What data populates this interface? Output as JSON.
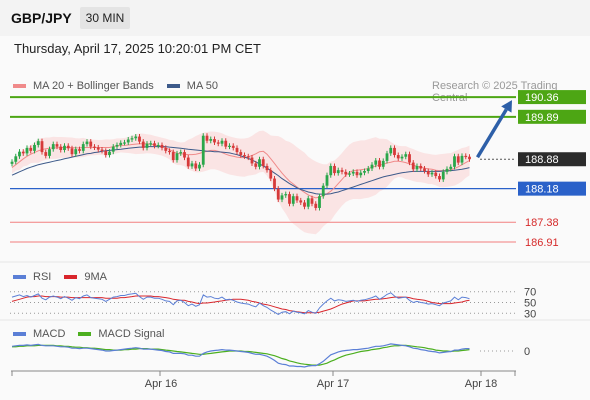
{
  "header": {
    "symbol": "GBP/JPY",
    "timeframe": "30 MIN"
  },
  "datetime": "Thursday, April 17, 2025 10:20:01 PM CET",
  "credit": "Research © 2025 Trading Central",
  "legend_main": [
    {
      "label": "MA 20 + Bollinger Bands",
      "color": "#f08a8a"
    },
    {
      "label": "MA 50",
      "color": "#3d5a8a"
    }
  ],
  "legend_rsi": [
    {
      "label": "RSI",
      "color": "#5b7fd6"
    },
    {
      "label": "9MA",
      "color": "#d9262c"
    }
  ],
  "legend_macd": [
    {
      "label": "MACD",
      "color": "#5b7fd6"
    },
    {
      "label": "MACD Signal",
      "color": "#4caf1f"
    }
  ],
  "colors": {
    "green_level": "#4da614",
    "blue_level": "#2a61c9",
    "red_level": "#f27f7f",
    "up_candle": "#2aa64a",
    "down_candle": "#d63a3a",
    "arrow": "#2d5fa8",
    "current_tag": "#2b2b2b"
  },
  "chart_data": [
    {
      "type": "candlestick",
      "title": "",
      "ylim": [
        186.6,
        190.6
      ],
      "x_labels": [
        "Apr 16",
        "Apr 17",
        "Apr 18"
      ],
      "levels": [
        {
          "label": "190.36",
          "value": 190.36,
          "kind": "resistance"
        },
        {
          "label": "189.89",
          "value": 189.89,
          "kind": "resistance"
        },
        {
          "label": "188.88",
          "value": 188.88,
          "kind": "current"
        },
        {
          "label": "188.18",
          "value": 188.18,
          "kind": "pivot"
        },
        {
          "label": "187.38",
          "value": 187.38,
          "kind": "support"
        },
        {
          "label": "186.91",
          "value": 186.91,
          "kind": "support"
        }
      ],
      "close": [
        188.82,
        188.95,
        189.06,
        189.02,
        189.15,
        189.08,
        189.22,
        189.31,
        189.05,
        188.96,
        189.12,
        189.24,
        189.18,
        189.1,
        189.2,
        189.14,
        189.0,
        189.12,
        189.08,
        189.24,
        189.3,
        189.18,
        189.16,
        189.11,
        189.08,
        188.98,
        189.06,
        189.18,
        189.22,
        189.27,
        189.28,
        189.35,
        189.38,
        189.42,
        189.3,
        189.15,
        189.25,
        189.26,
        189.2,
        189.22,
        189.15,
        189.08,
        189.05,
        188.86,
        189.02,
        189.05,
        188.92,
        188.71,
        188.78,
        188.66,
        188.75,
        189.44,
        189.32,
        189.36,
        189.28,
        189.25,
        189.32,
        189.18,
        189.2,
        189.15,
        189.05,
        188.98,
        188.95,
        188.92,
        188.78,
        188.7,
        188.88,
        188.72,
        188.62,
        188.42,
        188.18,
        187.92,
        188.02,
        188.05,
        187.82,
        188.0,
        187.9,
        187.85,
        187.75,
        187.95,
        187.82,
        187.72,
        188.0,
        188.25,
        188.5,
        188.72,
        188.55,
        188.62,
        188.58,
        188.52,
        188.54,
        188.58,
        188.5,
        188.56,
        188.6,
        188.66,
        188.75,
        188.85,
        188.7,
        188.84,
        189.02,
        189.15,
        188.98,
        188.9,
        188.94,
        189.0,
        188.8,
        188.64,
        188.72,
        188.66,
        188.6,
        188.52,
        188.56,
        188.48,
        188.4,
        188.58,
        188.65,
        188.7,
        188.95,
        188.8,
        188.96,
        188.94,
        188.88
      ],
      "ma20": [
        188.68,
        188.75,
        188.82,
        188.89,
        188.95,
        189.0,
        189.04,
        189.08,
        189.11,
        189.13,
        189.14,
        189.15,
        189.15,
        189.16,
        189.16,
        189.16,
        189.16,
        189.15,
        189.15,
        189.16,
        189.16,
        189.16,
        189.16,
        189.16,
        189.16,
        189.16,
        189.16,
        189.18,
        189.2,
        189.21,
        189.21,
        189.22,
        189.23,
        189.24,
        189.25,
        189.25,
        189.25,
        189.24,
        189.22,
        189.2,
        189.18,
        189.15,
        189.11,
        189.06,
        189.02,
        189.01,
        189.0,
        188.99,
        188.99,
        189.0,
        189.02,
        189.05,
        189.07,
        189.09,
        189.09,
        189.07,
        189.04,
        189.0,
        188.97,
        188.95,
        188.93,
        188.92,
        188.92,
        188.94,
        188.97,
        189.01,
        189.06,
        189.07,
        189.0,
        188.89,
        188.78,
        188.66,
        188.55,
        188.45,
        188.36,
        188.29,
        188.22,
        188.15,
        188.09,
        188.03,
        187.99,
        187.96,
        187.98,
        188.02,
        188.06,
        188.12,
        188.2,
        188.3,
        188.4,
        188.5,
        188.57,
        188.61,
        188.62,
        188.63,
        188.64,
        188.66,
        188.69,
        188.72,
        188.74,
        188.76,
        188.79,
        188.81,
        188.83,
        188.83,
        188.82,
        188.8,
        188.77,
        188.74,
        188.71,
        188.69,
        188.67,
        188.65,
        188.64,
        188.62,
        188.61,
        188.61,
        188.62,
        188.63,
        188.66,
        188.7,
        188.75,
        188.8,
        188.85
      ],
      "ma50": [
        188.5,
        188.54,
        188.58,
        188.62,
        188.66,
        188.69,
        188.72,
        188.75,
        188.77,
        188.79,
        188.81,
        188.83,
        188.85,
        188.87,
        188.89,
        188.91,
        188.93,
        188.95,
        188.97,
        188.99,
        189.01,
        189.02,
        189.04,
        189.05,
        189.07,
        189.08,
        189.09,
        189.1,
        189.11,
        189.12,
        189.13,
        189.14,
        189.15,
        189.16,
        189.17,
        189.17,
        189.18,
        189.18,
        189.18,
        189.18,
        189.18,
        189.18,
        189.17,
        189.16,
        189.15,
        189.14,
        189.13,
        189.12,
        189.11,
        189.1,
        189.09,
        189.08,
        189.07,
        189.07,
        189.06,
        189.06,
        189.05,
        189.04,
        189.03,
        189.01,
        188.99,
        188.96,
        188.93,
        188.9,
        188.86,
        188.82,
        188.77,
        188.72,
        188.67,
        188.61,
        188.55,
        188.49,
        188.42,
        188.36,
        188.3,
        188.25,
        188.2,
        188.16,
        188.13,
        188.1,
        188.08,
        188.06,
        188.05,
        188.05,
        188.05,
        188.06,
        188.08,
        188.1,
        188.13,
        188.16,
        188.19,
        188.22,
        188.25,
        188.28,
        188.31,
        188.34,
        188.37,
        188.4,
        188.43,
        188.46,
        188.48,
        188.5,
        188.52,
        188.54,
        188.56,
        188.57,
        188.58,
        188.59,
        188.59,
        188.59,
        188.59,
        188.59,
        188.59,
        188.59,
        188.59,
        188.6,
        188.6,
        188.61,
        188.62,
        188.63,
        188.64,
        188.66,
        188.68
      ]
    },
    {
      "type": "line",
      "title": "RSI",
      "ylim": [
        25,
        75
      ],
      "reference_levels": [
        70,
        50,
        30
      ],
      "series": [
        {
          "name": "RSI",
          "values": [
            60,
            62,
            64,
            61,
            63,
            60,
            63,
            66,
            58,
            55,
            60,
            62,
            60,
            57,
            61,
            58,
            54,
            59,
            57,
            62,
            64,
            59,
            58,
            57,
            56,
            52,
            56,
            60,
            61,
            63,
            63,
            65,
            66,
            67,
            61,
            56,
            60,
            60,
            58,
            58,
            56,
            53,
            52,
            46,
            53,
            54,
            50,
            44,
            47,
            43,
            46,
            64,
            60,
            61,
            58,
            57,
            60,
            55,
            56,
            54,
            51,
            49,
            48,
            47,
            44,
            42,
            49,
            44,
            41,
            36,
            32,
            28,
            32,
            33,
            29,
            34,
            32,
            31,
            29,
            35,
            32,
            30,
            40,
            47,
            53,
            58,
            53,
            55,
            54,
            52,
            53,
            54,
            52,
            54,
            55,
            57,
            59,
            62,
            56,
            60,
            65,
            68,
            62,
            58,
            59,
            60,
            54,
            50,
            52,
            50,
            49,
            47,
            48,
            46,
            44,
            49,
            51,
            53,
            60,
            55,
            60,
            59,
            57
          ]
        },
        {
          "name": "9MA",
          "values": [
            52,
            54,
            56,
            58,
            60,
            61,
            61,
            62,
            62,
            61,
            61,
            61,
            61,
            60,
            60,
            60,
            59,
            59,
            59,
            59,
            59,
            59,
            59,
            59,
            59,
            58,
            58,
            58,
            58,
            59,
            59,
            60,
            61,
            62,
            62,
            62,
            62,
            62,
            61,
            61,
            60,
            59,
            58,
            56,
            55,
            54,
            54,
            52,
            51,
            49,
            48,
            49,
            49,
            50,
            51,
            52,
            53,
            54,
            55,
            56,
            56,
            56,
            55,
            54,
            52,
            51,
            49,
            47,
            46,
            44,
            42,
            40,
            38,
            37,
            35,
            34,
            33,
            32,
            31,
            31,
            31,
            31,
            32,
            34,
            36,
            38,
            41,
            44,
            47,
            49,
            51,
            53,
            53,
            53,
            53,
            54,
            55,
            56,
            56,
            57,
            58,
            59,
            60,
            60,
            60,
            60,
            59,
            57,
            56,
            55,
            54,
            52,
            50,
            49,
            48,
            48,
            48,
            48,
            49,
            50,
            51,
            53,
            54
          ]
        }
      ]
    },
    {
      "type": "line",
      "title": "MACD",
      "reference_levels": [
        0
      ],
      "series": [
        {
          "name": "MACD",
          "values": [
            0.1,
            0.11,
            0.12,
            0.12,
            0.13,
            0.12,
            0.13,
            0.14,
            0.12,
            0.11,
            0.11,
            0.11,
            0.1,
            0.09,
            0.09,
            0.08,
            0.06,
            0.06,
            0.05,
            0.06,
            0.06,
            0.05,
            0.04,
            0.03,
            0.02,
            0.0,
            0.0,
            0.01,
            0.02,
            0.03,
            0.04,
            0.05,
            0.06,
            0.07,
            0.06,
            0.04,
            0.04,
            0.04,
            0.03,
            0.02,
            0.01,
            -0.01,
            -0.02,
            -0.05,
            -0.05,
            -0.05,
            -0.06,
            -0.09,
            -0.09,
            -0.11,
            -0.11,
            -0.05,
            -0.02,
            0.0,
            0.01,
            0.02,
            0.03,
            0.02,
            0.02,
            0.01,
            0.0,
            -0.01,
            -0.02,
            -0.03,
            -0.05,
            -0.07,
            -0.07,
            -0.09,
            -0.11,
            -0.15,
            -0.2,
            -0.26,
            -0.28,
            -0.29,
            -0.32,
            -0.32,
            -0.33,
            -0.33,
            -0.34,
            -0.32,
            -0.31,
            -0.31,
            -0.27,
            -0.22,
            -0.15,
            -0.08,
            -0.05,
            -0.02,
            0.0,
            0.01,
            0.02,
            0.03,
            0.03,
            0.04,
            0.05,
            0.06,
            0.08,
            0.1,
            0.1,
            0.11,
            0.13,
            0.15,
            0.14,
            0.13,
            0.12,
            0.11,
            0.09,
            0.06,
            0.05,
            0.03,
            0.02,
            0.0,
            -0.01,
            -0.02,
            -0.04,
            -0.03,
            -0.02,
            -0.01,
            0.02,
            0.02,
            0.04,
            0.05,
            0.05
          ]
        },
        {
          "name": "MACD Signal",
          "values": [
            0.09,
            0.09,
            0.1,
            0.1,
            0.11,
            0.11,
            0.11,
            0.12,
            0.12,
            0.12,
            0.12,
            0.12,
            0.11,
            0.11,
            0.1,
            0.1,
            0.09,
            0.08,
            0.08,
            0.07,
            0.07,
            0.06,
            0.06,
            0.05,
            0.04,
            0.03,
            0.03,
            0.02,
            0.02,
            0.02,
            0.03,
            0.03,
            0.04,
            0.04,
            0.05,
            0.05,
            0.05,
            0.04,
            0.04,
            0.04,
            0.03,
            0.02,
            0.01,
            0.0,
            -0.01,
            -0.02,
            -0.03,
            -0.04,
            -0.05,
            -0.06,
            -0.07,
            -0.07,
            -0.06,
            -0.05,
            -0.04,
            -0.03,
            -0.02,
            -0.01,
            0.0,
            0.0,
            0.0,
            0.0,
            -0.01,
            -0.01,
            -0.02,
            -0.03,
            -0.04,
            -0.05,
            -0.06,
            -0.08,
            -0.1,
            -0.13,
            -0.16,
            -0.18,
            -0.21,
            -0.23,
            -0.25,
            -0.27,
            -0.28,
            -0.29,
            -0.3,
            -0.3,
            -0.3,
            -0.28,
            -0.26,
            -0.22,
            -0.19,
            -0.15,
            -0.12,
            -0.09,
            -0.07,
            -0.05,
            -0.03,
            -0.01,
            0.0,
            0.01,
            0.03,
            0.04,
            0.05,
            0.07,
            0.08,
            0.1,
            0.11,
            0.11,
            0.12,
            0.12,
            0.11,
            0.1,
            0.09,
            0.08,
            0.07,
            0.05,
            0.04,
            0.02,
            0.01,
            0.0,
            0.0,
            -0.01,
            0.0,
            0.0,
            0.01,
            0.02,
            0.03
          ]
        }
      ]
    }
  ]
}
